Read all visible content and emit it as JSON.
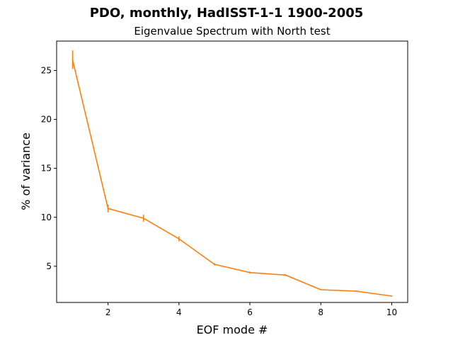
{
  "chart_data": {
    "type": "line",
    "title": "PDO, monthly, HadISST-1-1 1900-2005",
    "subtitle": "Eigenvalue Spectrum with North test",
    "xlabel": "EOF mode #",
    "ylabel": "% of variance",
    "xlim": [
      0.55,
      10.45
    ],
    "ylim": [
      1.3,
      28.0
    ],
    "xticks": [
      2,
      4,
      6,
      8,
      10
    ],
    "yticks": [
      5,
      10,
      15,
      20,
      25
    ],
    "grid": false,
    "series": [
      {
        "color": "#ff7f0e",
        "x": [
          1,
          2,
          3,
          4,
          5,
          6,
          7,
          8,
          9,
          10
        ],
        "y": [
          26.1,
          10.9,
          9.9,
          7.8,
          5.2,
          4.35,
          4.1,
          2.6,
          2.45,
          1.95
        ],
        "error": [
          0.95,
          0.4,
          0.35,
          0.25,
          0.12,
          0.1,
          0.1,
          0.05,
          0.05,
          0.04
        ]
      }
    ]
  }
}
